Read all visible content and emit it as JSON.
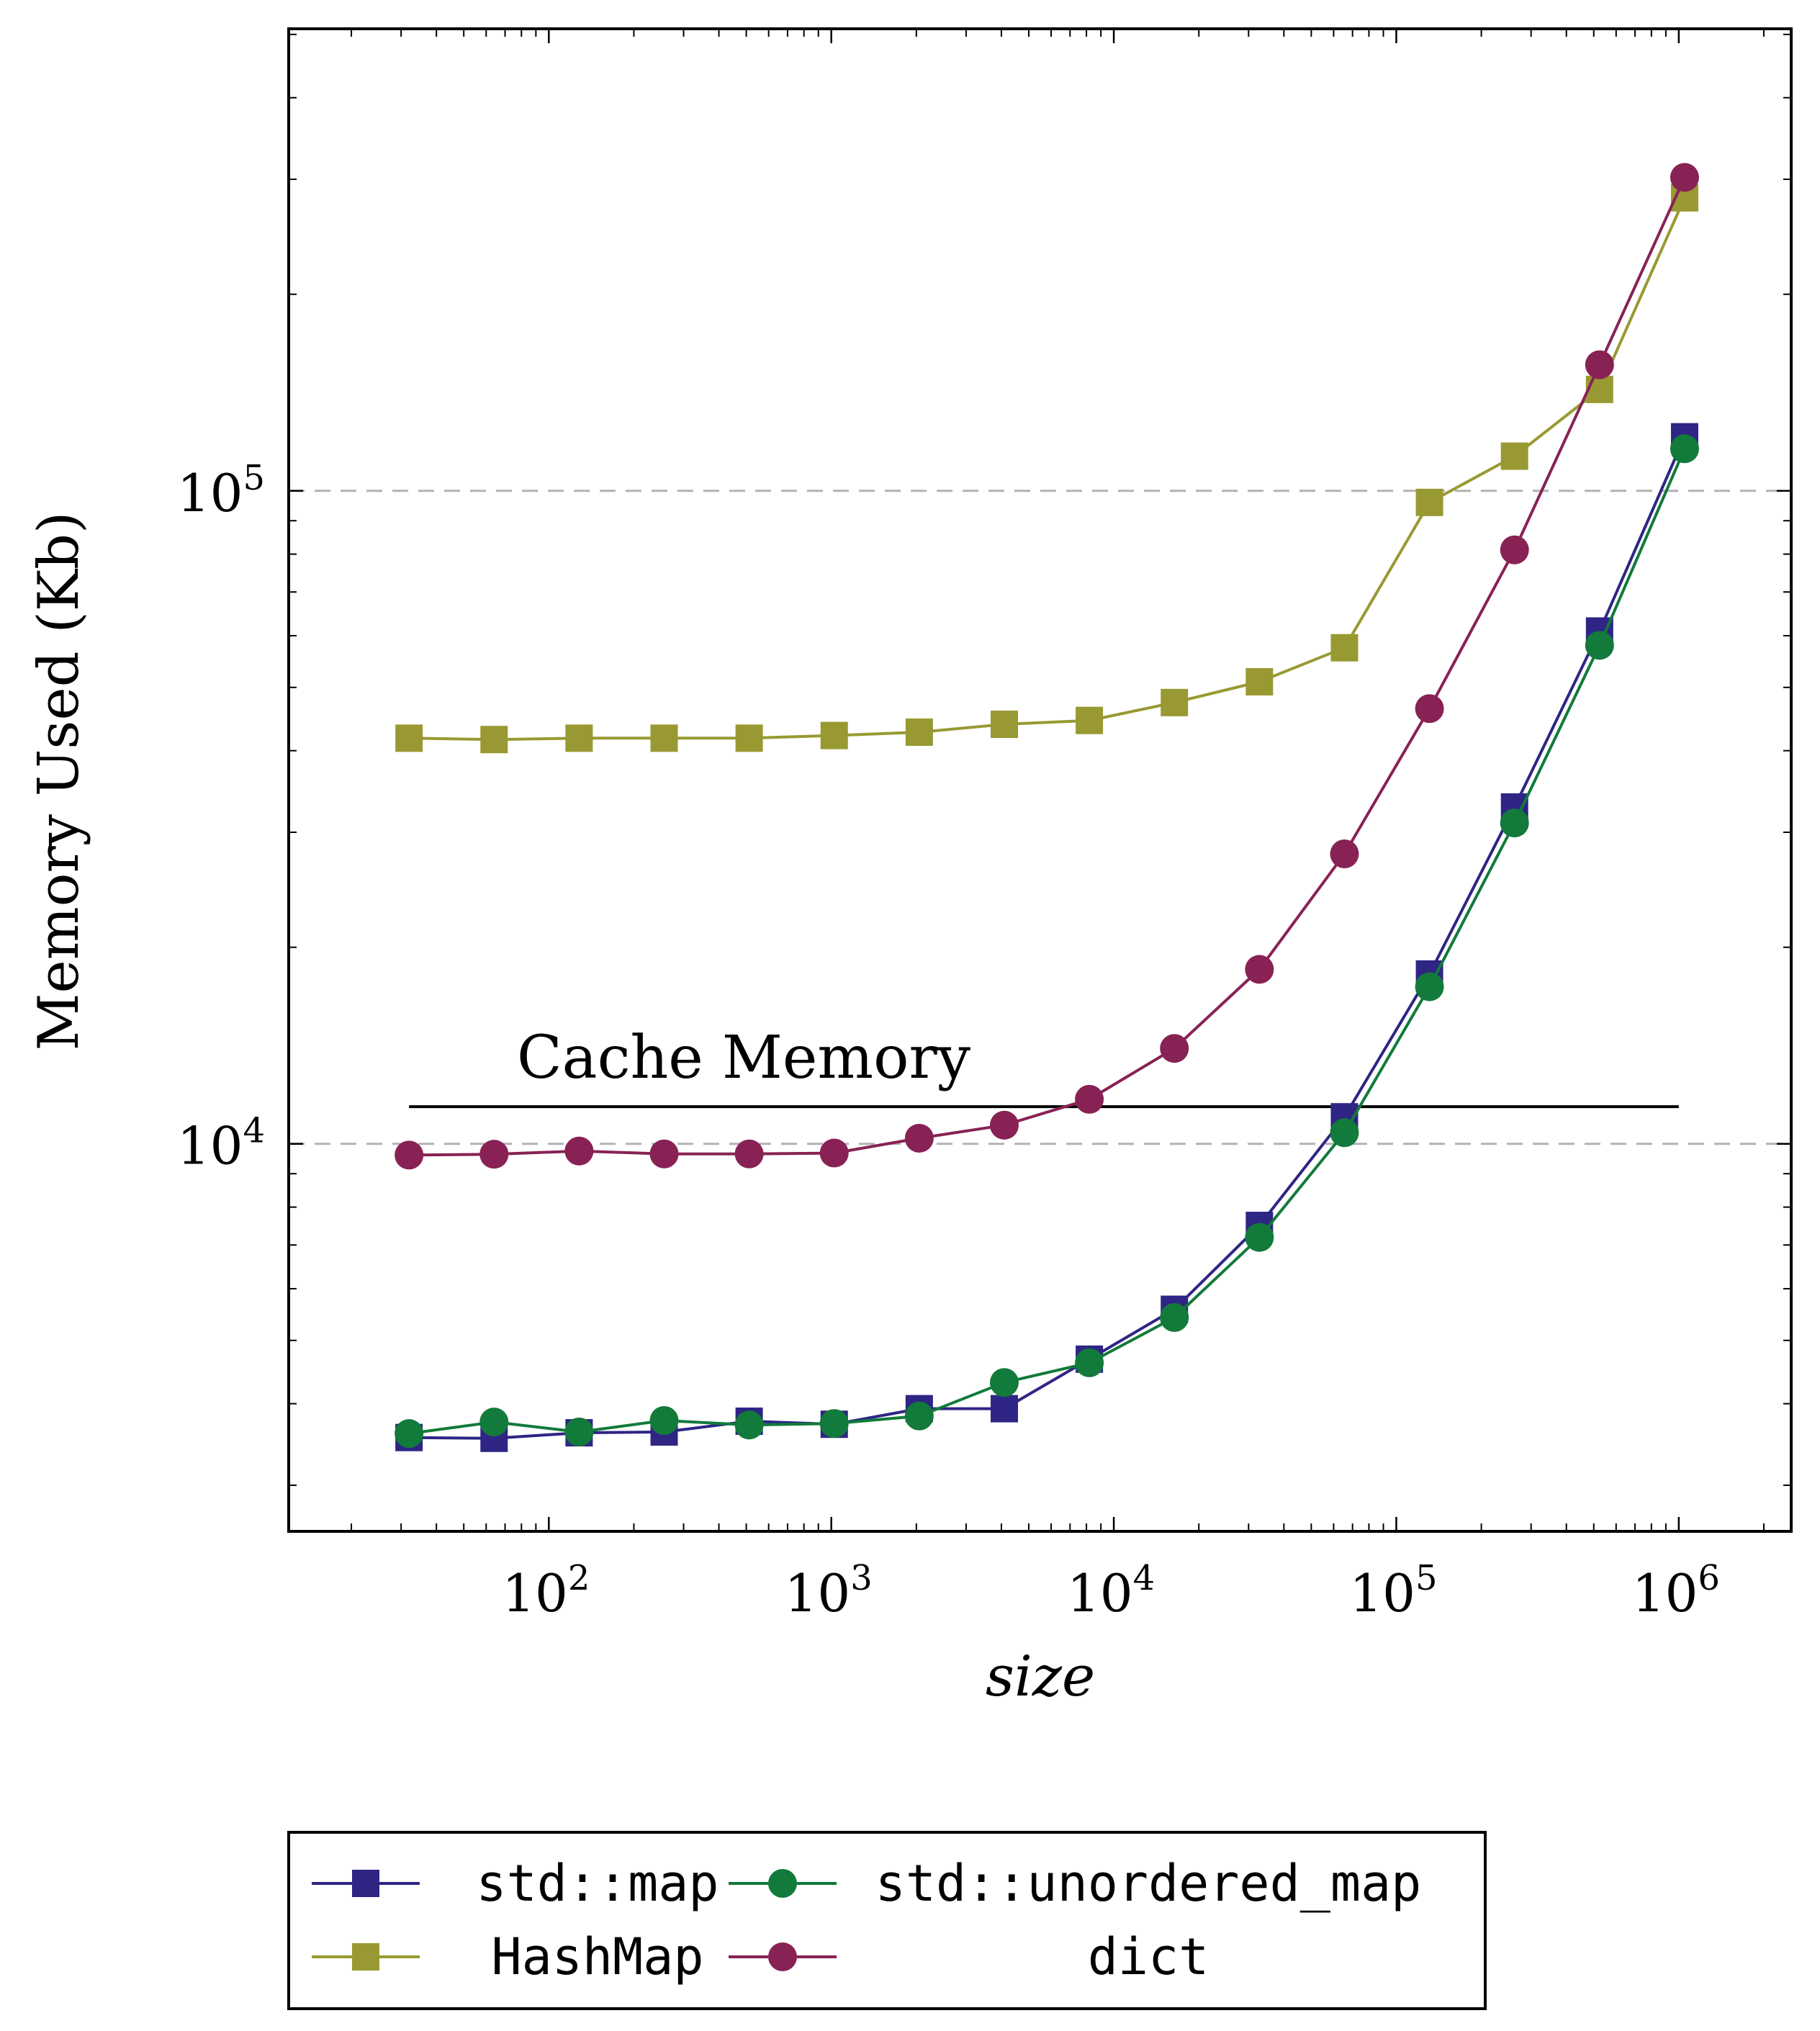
{
  "chart_data": {
    "type": "line",
    "xscale": "log",
    "yscale": "log",
    "xlabel": "size",
    "ylabel": "Memory Used (Kb)",
    "xlim": [
      12,
      2500000
    ],
    "ylim": [
      2550,
      510000
    ],
    "x_ticks": [
      {
        "value": 100,
        "base": "10",
        "exp": "2"
      },
      {
        "value": 1000,
        "base": "10",
        "exp": "3"
      },
      {
        "value": 10000,
        "base": "10",
        "exp": "4"
      },
      {
        "value": 100000,
        "base": "10",
        "exp": "5"
      },
      {
        "value": 1000000,
        "base": "10",
        "exp": "6"
      }
    ],
    "y_ticks": [
      {
        "value": 10000,
        "base": "10",
        "exp": "4"
      },
      {
        "value": 100000,
        "base": "10",
        "exp": "5"
      }
    ],
    "y_grid": [
      10000,
      100000
    ],
    "x": [
      32,
      64,
      128,
      256,
      512,
      1024,
      2048,
      4096,
      8192,
      16384,
      32768,
      65536,
      131072,
      262144,
      524288,
      1048576
    ],
    "series": [
      {
        "name": "std::map",
        "marker": "square",
        "color": "#2e2585",
        "values": [
          3550,
          3540,
          3610,
          3620,
          3760,
          3720,
          3930,
          3930,
          4680,
          5580,
          7500,
          11000,
          18200,
          32800,
          61000,
          121000
        ]
      },
      {
        "name": "std::unordered_map",
        "marker": "circle",
        "color": "#127a3a",
        "values": [
          3600,
          3750,
          3620,
          3770,
          3710,
          3730,
          3830,
          4310,
          4620,
          5420,
          7190,
          10400,
          17400,
          31000,
          58000,
          116000
        ]
      },
      {
        "name": "HashMap",
        "marker": "square",
        "color": "#999933",
        "values": [
          41800,
          41600,
          41800,
          41800,
          41800,
          42200,
          42700,
          43900,
          44500,
          47400,
          51000,
          57500,
          96000,
          113000,
          143000,
          281000
        ]
      },
      {
        "name": "dict",
        "marker": "circle",
        "color": "#882255",
        "values": [
          9610,
          9640,
          9750,
          9650,
          9650,
          9680,
          10200,
          10680,
          11700,
          14000,
          18500,
          27800,
          46400,
          81200,
          156000,
          302000
        ]
      }
    ],
    "annotation": {
      "text": "Cache Memory",
      "y": 11400,
      "x_from": 32,
      "x_to": 1000000
    },
    "legend": {
      "placement": "bottom-outside",
      "columns": 2
    }
  }
}
